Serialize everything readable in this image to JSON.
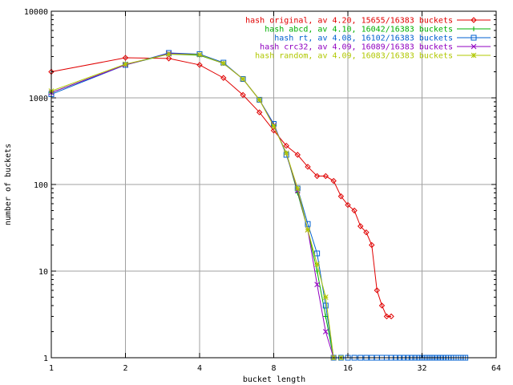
{
  "chart_data": {
    "type": "line",
    "xlabel": "bucket length",
    "ylabel": "number of buckets",
    "xscale": "log2",
    "yscale": "log10",
    "xlim": [
      1,
      64
    ],
    "ylim": [
      1,
      10000
    ],
    "x_ticks": [
      1,
      2,
      4,
      8,
      16,
      32,
      64
    ],
    "x_tick_labels": [
      "1",
      "2",
      "4",
      "8",
      "16",
      "32",
      "64"
    ],
    "y_ticks": [
      1,
      10,
      100,
      1000,
      10000
    ],
    "y_tick_labels": [
      "1",
      "10",
      "100",
      "1000",
      "10000"
    ],
    "grid": true,
    "legend_position": "top-right",
    "series": [
      {
        "name": "hash original, av 4.20, 15655/16383 buckets",
        "color": "#e00000",
        "marker": "diamond",
        "points": [
          [
            1,
            2000
          ],
          [
            2,
            2900
          ],
          [
            3,
            2850
          ],
          [
            4,
            2400
          ],
          [
            5,
            1700
          ],
          [
            6,
            1080
          ],
          [
            7,
            680
          ],
          [
            8,
            420
          ],
          [
            9,
            280
          ],
          [
            10,
            220
          ],
          [
            11,
            160
          ],
          [
            12,
            125
          ],
          [
            13,
            125
          ],
          [
            14,
            110
          ],
          [
            15,
            73
          ],
          [
            16,
            58
          ],
          [
            17,
            50
          ],
          [
            18,
            33
          ],
          [
            19,
            28
          ],
          [
            20,
            20
          ],
          [
            21,
            6
          ],
          [
            22,
            4
          ],
          [
            23,
            3
          ],
          [
            24,
            3
          ]
        ]
      },
      {
        "name": "hash abcd, av 4.10, 16042/16383 buckets",
        "color": "#00b000",
        "marker": "plus",
        "points": [
          [
            1,
            1150
          ],
          [
            2,
            2400
          ],
          [
            3,
            3200
          ],
          [
            4,
            3100
          ],
          [
            5,
            2500
          ],
          [
            6,
            1650
          ],
          [
            7,
            950
          ],
          [
            8,
            480
          ],
          [
            9,
            230
          ],
          [
            10,
            80
          ],
          [
            11,
            30
          ],
          [
            12,
            10
          ],
          [
            13,
            3
          ],
          [
            14,
            1
          ]
        ]
      },
      {
        "name": "hash rt, av 4.08, 16102/16383 buckets",
        "color": "#0060d0",
        "marker": "square",
        "points": [
          [
            1,
            1100
          ],
          [
            2,
            2400
          ],
          [
            3,
            3300
          ],
          [
            4,
            3200
          ],
          [
            5,
            2550
          ],
          [
            6,
            1650
          ],
          [
            7,
            950
          ],
          [
            8,
            500
          ],
          [
            9,
            220
          ],
          [
            10,
            90
          ],
          [
            11,
            35
          ],
          [
            12,
            16
          ],
          [
            13,
            4
          ],
          [
            14,
            1
          ],
          [
            15,
            1
          ],
          [
            16,
            1
          ],
          [
            17,
            1
          ],
          [
            18,
            1
          ],
          [
            19,
            1
          ],
          [
            20,
            1
          ],
          [
            21,
            1
          ],
          [
            22,
            1
          ],
          [
            23,
            1
          ],
          [
            24,
            1
          ],
          [
            25,
            1
          ],
          [
            26,
            1
          ],
          [
            27,
            1
          ],
          [
            28,
            1
          ],
          [
            29,
            1
          ],
          [
            30,
            1
          ],
          [
            31,
            1
          ],
          [
            32,
            1
          ],
          [
            33,
            1
          ],
          [
            34,
            1
          ],
          [
            35,
            1
          ],
          [
            36,
            1
          ],
          [
            37,
            1
          ],
          [
            38,
            1
          ],
          [
            39,
            1
          ],
          [
            40,
            1
          ],
          [
            41,
            1
          ],
          [
            42,
            1
          ],
          [
            43,
            1
          ],
          [
            44,
            1
          ],
          [
            45,
            1
          ],
          [
            46,
            1
          ],
          [
            47,
            1
          ],
          [
            48,
            1
          ]
        ]
      },
      {
        "name": "hash crc32, av 4.09, 16089/16383 buckets",
        "color": "#9000c0",
        "marker": "cross",
        "points": [
          [
            1,
            1150
          ],
          [
            2,
            2400
          ],
          [
            3,
            3250
          ],
          [
            4,
            3150
          ],
          [
            5,
            2500
          ],
          [
            6,
            1650
          ],
          [
            7,
            950
          ],
          [
            8,
            480
          ],
          [
            9,
            230
          ],
          [
            10,
            85
          ],
          [
            11,
            30
          ],
          [
            12,
            7
          ],
          [
            13,
            2
          ],
          [
            14,
            1
          ]
        ]
      },
      {
        "name": "hash random, av 4.09, 16083/16383 buckets",
        "color": "#b0c800",
        "marker": "star",
        "points": [
          [
            1,
            1200
          ],
          [
            2,
            2450
          ],
          [
            3,
            3200
          ],
          [
            4,
            3150
          ],
          [
            5,
            2500
          ],
          [
            6,
            1650
          ],
          [
            7,
            950
          ],
          [
            8,
            470
          ],
          [
            9,
            230
          ],
          [
            10,
            90
          ],
          [
            11,
            30
          ],
          [
            12,
            12
          ],
          [
            13,
            5
          ],
          [
            14,
            1
          ],
          [
            15,
            1
          ]
        ]
      }
    ]
  }
}
